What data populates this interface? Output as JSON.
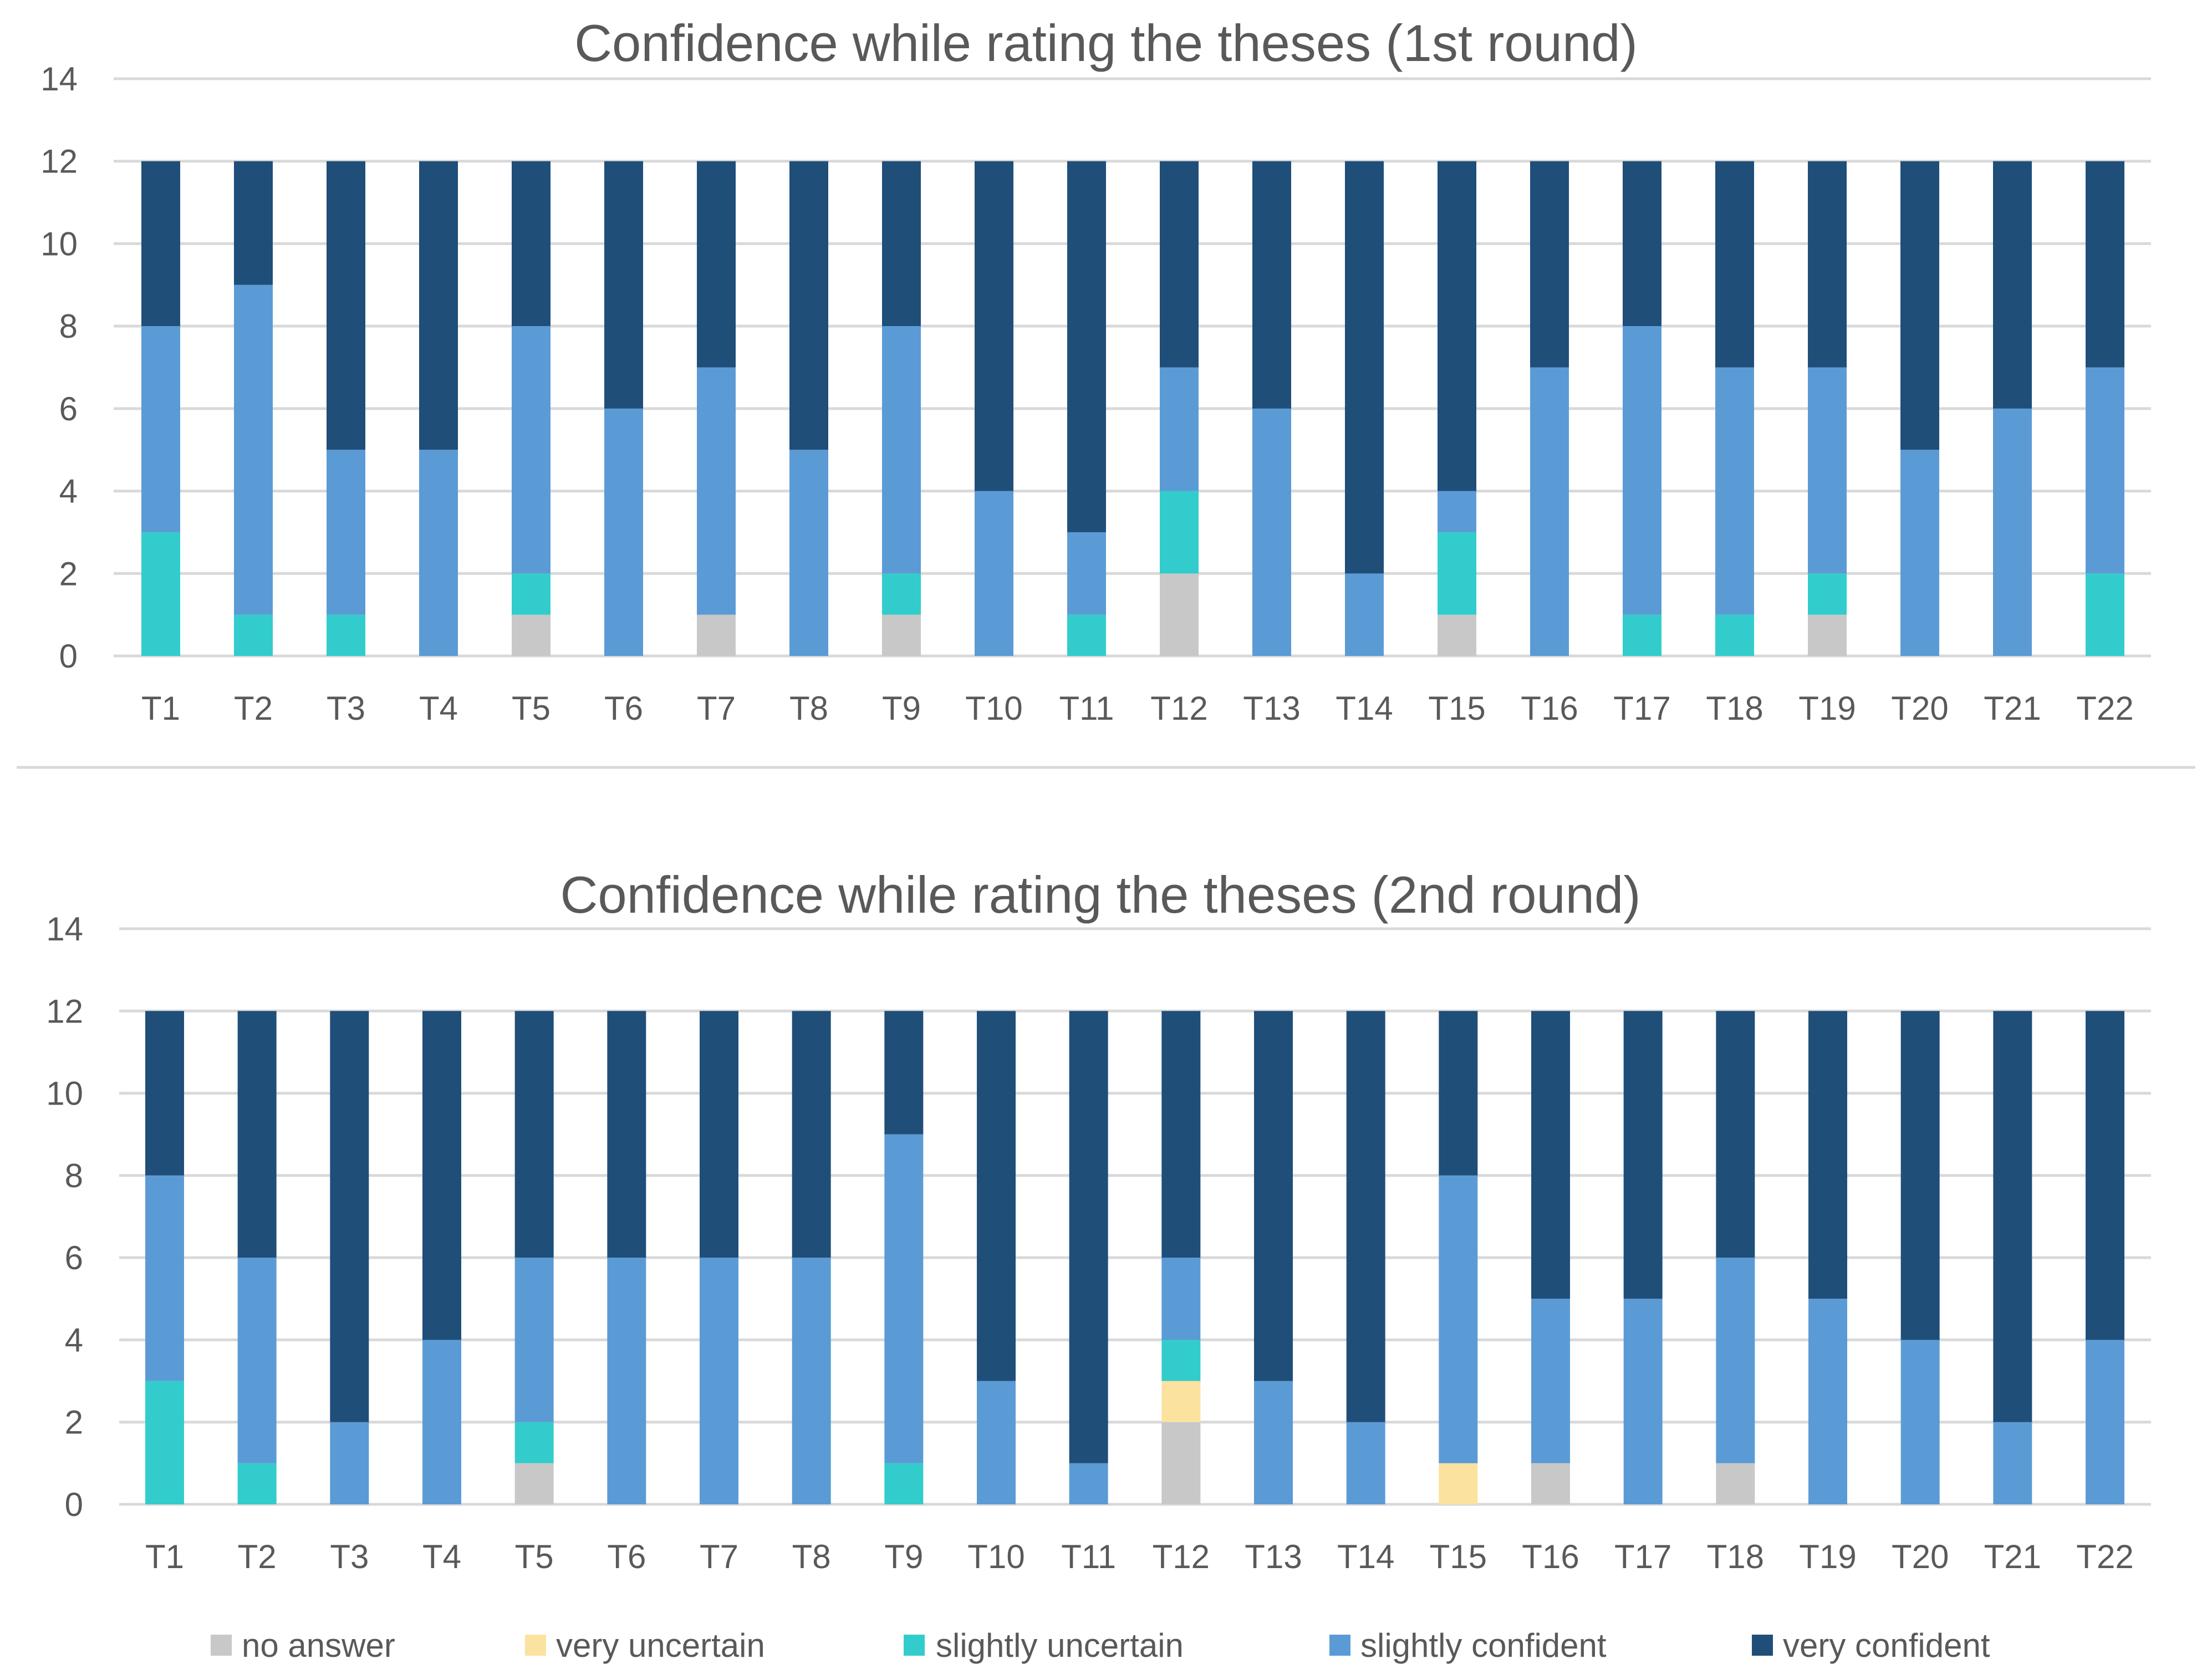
{
  "chart_data": [
    {
      "type": "bar",
      "stacked": true,
      "title": "Confidence while rating the theses (1st round)",
      "xlabel": "",
      "ylabel": "",
      "ylim": [
        0,
        14
      ],
      "yticks": [
        "0",
        "2",
        "4",
        "6",
        "8",
        "10",
        "12",
        "14"
      ],
      "grid": true,
      "categories": [
        "T1",
        "T2",
        "T3",
        "T4",
        "T5",
        "T6",
        "T7",
        "T8",
        "T9",
        "T10",
        "T11",
        "T12",
        "T13",
        "T14",
        "T15",
        "T16",
        "T17",
        "T18",
        "T19",
        "T20",
        "T21",
        "T22"
      ],
      "series": [
        {
          "name": "no answer",
          "color": "#c8c8c8",
          "values": [
            0,
            0,
            0,
            0,
            1,
            0,
            1,
            0,
            1,
            0,
            0,
            2,
            0,
            0,
            1,
            0,
            0,
            0,
            1,
            0,
            0,
            0
          ]
        },
        {
          "name": "very uncertain",
          "color": "#fbe29f",
          "values": [
            0,
            0,
            0,
            0,
            0,
            0,
            0,
            0,
            0,
            0,
            0,
            0,
            0,
            0,
            0,
            0,
            0,
            0,
            0,
            0,
            0,
            0
          ]
        },
        {
          "name": "slightly uncertain",
          "color": "#33cccc",
          "values": [
            3,
            1,
            1,
            0,
            1,
            0,
            0,
            0,
            1,
            0,
            1,
            2,
            0,
            0,
            2,
            0,
            1,
            1,
            1,
            0,
            0,
            2
          ]
        },
        {
          "name": "slightly confident",
          "color": "#5b9bd5",
          "values": [
            5,
            8,
            4,
            5,
            6,
            6,
            6,
            5,
            6,
            4,
            2,
            3,
            6,
            2,
            1,
            7,
            7,
            6,
            5,
            5,
            6,
            5
          ]
        },
        {
          "name": "very confident",
          "color": "#1f4e79",
          "values": [
            4,
            3,
            7,
            7,
            4,
            6,
            5,
            7,
            4,
            8,
            9,
            5,
            6,
            10,
            8,
            5,
            4,
            5,
            5,
            7,
            6,
            5
          ]
        }
      ]
    },
    {
      "type": "bar",
      "stacked": true,
      "title": "Confidence while rating the theses (2nd round)",
      "xlabel": "",
      "ylabel": "",
      "ylim": [
        0,
        14
      ],
      "yticks": [
        "0",
        "2",
        "4",
        "6",
        "8",
        "10",
        "12",
        "14"
      ],
      "grid": true,
      "categories": [
        "T1",
        "T2",
        "T3",
        "T4",
        "T5",
        "T6",
        "T7",
        "T8",
        "T9",
        "T10",
        "T11",
        "T12",
        "T13",
        "T14",
        "T15",
        "T16",
        "T17",
        "T18",
        "T19",
        "T20",
        "T21",
        "T22"
      ],
      "series": [
        {
          "name": "no answer",
          "color": "#c8c8c8",
          "values": [
            0,
            0,
            0,
            0,
            1,
            0,
            0,
            0,
            0,
            0,
            0,
            2,
            0,
            0,
            0,
            1,
            0,
            1,
            0,
            0,
            0,
            0
          ]
        },
        {
          "name": "very uncertain",
          "color": "#fbe29f",
          "values": [
            0,
            0,
            0,
            0,
            0,
            0,
            0,
            0,
            0,
            0,
            0,
            1,
            0,
            0,
            1,
            0,
            0,
            0,
            0,
            0,
            0,
            0
          ]
        },
        {
          "name": "slightly uncertain",
          "color": "#33cccc",
          "values": [
            3,
            1,
            0,
            0,
            1,
            0,
            0,
            0,
            1,
            0,
            0,
            1,
            0,
            0,
            0,
            0,
            0,
            0,
            0,
            0,
            0,
            0
          ]
        },
        {
          "name": "slightly confident",
          "color": "#5b9bd5",
          "values": [
            5,
            5,
            2,
            4,
            4,
            6,
            6,
            6,
            8,
            3,
            1,
            2,
            3,
            2,
            7,
            4,
            5,
            5,
            5,
            4,
            2,
            4
          ]
        },
        {
          "name": "very confident",
          "color": "#1f4e79",
          "values": [
            4,
            6,
            10,
            8,
            6,
            6,
            6,
            6,
            3,
            9,
            11,
            6,
            9,
            10,
            4,
            7,
            7,
            6,
            7,
            8,
            10,
            8
          ]
        }
      ]
    }
  ],
  "legend": {
    "placement": "bottom",
    "items": [
      {
        "label": "no answer",
        "color": "#c8c8c8"
      },
      {
        "label": "very uncertain",
        "color": "#fbe29f"
      },
      {
        "label": "slightly uncertain",
        "color": "#33cccc"
      },
      {
        "label": "slightly confident",
        "color": "#5b9bd5"
      },
      {
        "label": "very confident",
        "color": "#1f4e79"
      }
    ]
  }
}
